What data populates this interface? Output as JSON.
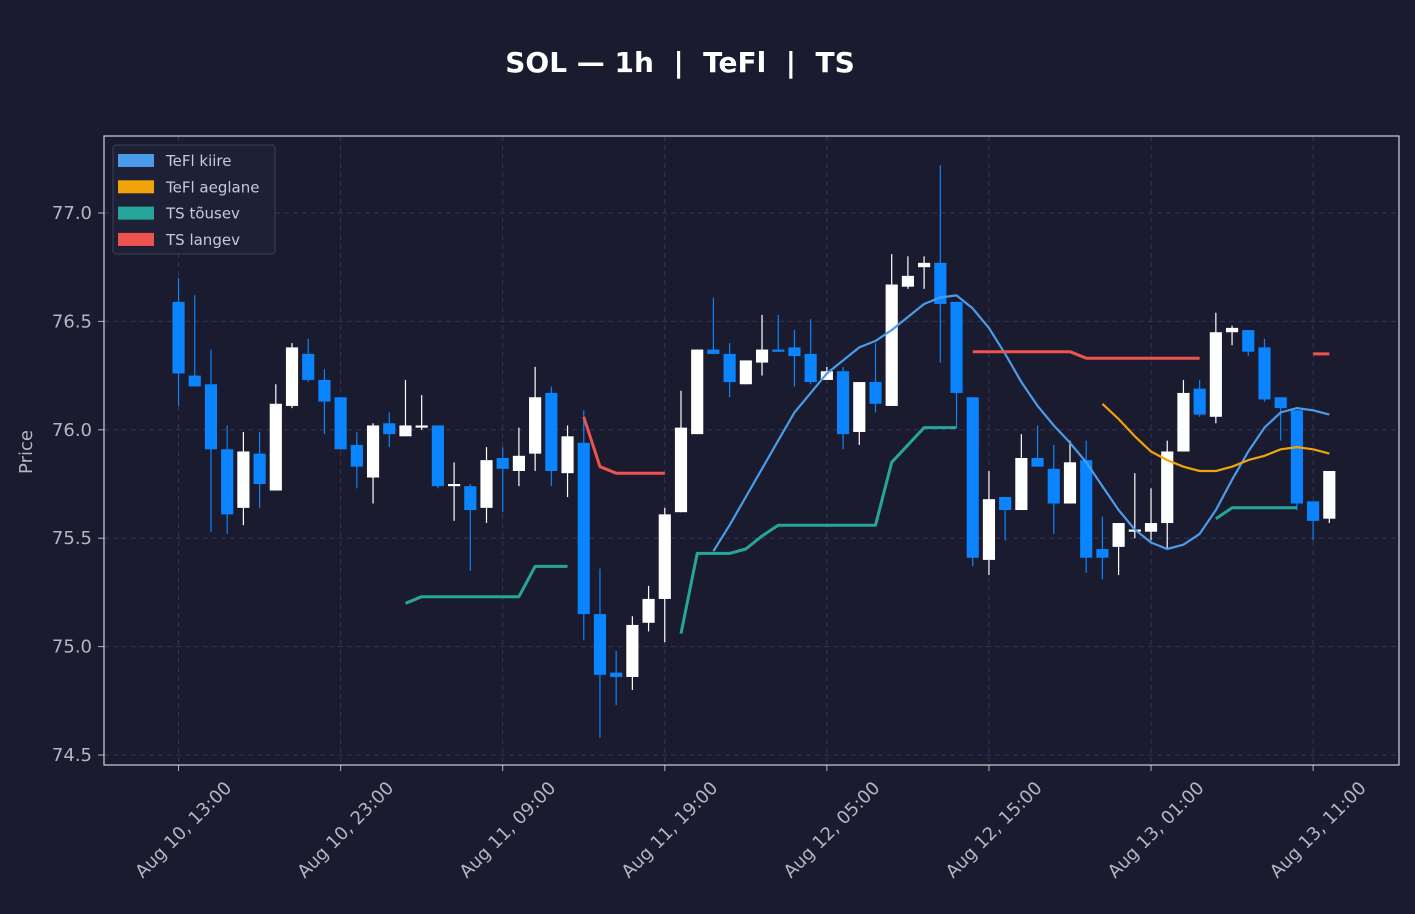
{
  "chart_data": {
    "type": "candlestick",
    "title": "SOL — 1h  |  TeFl  |  TS",
    "y_label": "Price",
    "categories": [
      "Aug 10, 13:00",
      null,
      null,
      null,
      null,
      null,
      null,
      null,
      null,
      null,
      "Aug 10, 23:00",
      null,
      null,
      null,
      null,
      null,
      null,
      null,
      null,
      null,
      "Aug 11, 09:00",
      null,
      null,
      null,
      null,
      null,
      null,
      null,
      null,
      null,
      "Aug 11, 19:00",
      null,
      null,
      null,
      null,
      null,
      null,
      null,
      null,
      null,
      "Aug 12, 05:00",
      null,
      null,
      null,
      null,
      null,
      null,
      null,
      null,
      null,
      "Aug 12, 15:00",
      null,
      null,
      null,
      null,
      null,
      null,
      null,
      null,
      null,
      "Aug 13, 01:00",
      null,
      null,
      null,
      null,
      null,
      null,
      null,
      null,
      null,
      "Aug 13, 11:00",
      null
    ],
    "open": [
      76.59,
      76.25,
      76.21,
      75.91,
      75.64,
      75.89,
      75.72,
      76.11,
      76.35,
      76.23,
      76.15,
      75.93,
      75.78,
      76.03,
      75.97,
      76.01,
      76.02,
      75.74,
      75.74,
      75.64,
      75.87,
      75.81,
      75.89,
      76.17,
      75.8,
      75.94,
      75.15,
      74.88,
      74.86,
      75.11,
      75.22,
      75.62,
      75.98,
      76.37,
      76.35,
      76.21,
      76.31,
      76.37,
      76.38,
      76.35,
      76.23,
      76.27,
      75.99,
      76.22,
      76.11,
      76.66,
      76.75,
      76.77,
      76.59,
      76.15,
      75.4,
      75.69,
      75.63,
      75.87,
      75.82,
      75.66,
      75.86,
      75.45,
      75.46,
      75.53,
      75.53,
      75.57,
      75.9,
      76.19,
      76.06,
      76.45,
      76.46,
      76.38,
      76.15,
      76.09,
      75.67,
      75.59
    ],
    "high": [
      76.7,
      76.62,
      76.37,
      76.02,
      75.99,
      75.99,
      76.21,
      76.4,
      76.42,
      76.28,
      76.15,
      75.99,
      76.03,
      76.08,
      76.23,
      76.16,
      76.02,
      75.85,
      75.75,
      75.92,
      75.92,
      76.01,
      76.29,
      76.2,
      76.02,
      76.09,
      75.36,
      74.98,
      75.14,
      75.28,
      75.64,
      76.18,
      76.37,
      76.61,
      76.4,
      76.32,
      76.53,
      76.53,
      76.46,
      76.51,
      76.29,
      76.29,
      76.22,
      76.4,
      76.81,
      76.8,
      76.8,
      77.22,
      76.59,
      76.15,
      75.81,
      75.69,
      75.98,
      76.02,
      75.93,
      75.95,
      75.95,
      75.6,
      75.57,
      75.8,
      75.73,
      75.95,
      76.23,
      76.23,
      76.54,
      76.48,
      76.46,
      76.42,
      76.15,
      76.09,
      75.67,
      75.81
    ],
    "low": [
      76.11,
      76.2,
      75.53,
      75.52,
      75.56,
      75.64,
      75.72,
      76.1,
      76.22,
      75.98,
      75.91,
      75.73,
      75.66,
      75.92,
      75.97,
      76.0,
      75.73,
      75.58,
      75.35,
      75.57,
      75.62,
      75.74,
      75.81,
      75.74,
      75.69,
      75.03,
      74.58,
      74.73,
      74.8,
      75.07,
      75.02,
      75.62,
      75.98,
      76.35,
      76.15,
      76.21,
      76.25,
      76.36,
      76.2,
      76.21,
      76.23,
      75.91,
      75.93,
      76.08,
      76.11,
      76.65,
      76.65,
      76.31,
      76.01,
      75.37,
      75.33,
      75.49,
      75.63,
      75.83,
      75.52,
      75.66,
      75.34,
      75.31,
      75.33,
      75.5,
      75.49,
      75.45,
      75.9,
      76.06,
      76.03,
      76.39,
      76.34,
      76.13,
      75.95,
      75.63,
      75.49,
      75.57
    ],
    "close": [
      76.26,
      76.2,
      75.91,
      75.61,
      75.9,
      75.75,
      76.12,
      76.38,
      76.23,
      76.13,
      75.91,
      75.83,
      76.02,
      75.98,
      76.02,
      76.02,
      75.74,
      75.75,
      75.63,
      75.86,
      75.82,
      75.88,
      76.15,
      75.81,
      75.97,
      75.15,
      74.87,
      74.86,
      75.1,
      75.22,
      75.61,
      76.01,
      76.37,
      76.35,
      76.22,
      76.32,
      76.37,
      76.36,
      76.34,
      76.22,
      76.27,
      75.98,
      76.22,
      76.12,
      76.67,
      76.71,
      76.77,
      76.58,
      76.17,
      75.41,
      75.68,
      75.63,
      75.87,
      75.83,
      75.66,
      75.85,
      75.41,
      75.41,
      75.57,
      75.54,
      75.57,
      75.9,
      76.17,
      76.07,
      76.45,
      76.47,
      76.36,
      76.14,
      76.1,
      75.66,
      75.58,
      75.81
    ],
    "up_color": "#ffffff",
    "down_color": "#0a84ff",
    "series": [
      {
        "name": "TeFl kiire",
        "color": "#4c9be8",
        "values": [
          null,
          null,
          null,
          null,
          null,
          null,
          null,
          null,
          null,
          null,
          null,
          null,
          null,
          null,
          null,
          null,
          null,
          null,
          null,
          null,
          null,
          null,
          null,
          null,
          null,
          null,
          null,
          null,
          null,
          null,
          null,
          null,
          null,
          75.44,
          75.56,
          75.69,
          75.82,
          75.95,
          76.08,
          76.17,
          76.26,
          76.32,
          76.38,
          76.41,
          76.46,
          76.52,
          76.58,
          76.61,
          76.62,
          76.56,
          76.47,
          76.35,
          76.22,
          76.11,
          76.02,
          75.94,
          75.85,
          75.74,
          75.63,
          75.54,
          75.48,
          75.45,
          75.47,
          75.52,
          75.63,
          75.77,
          75.9,
          76.01,
          76.08,
          76.1,
          76.09,
          76.07
        ]
      },
      {
        "name": "TeFl aeglane",
        "color": "#f0a30a",
        "values": [
          null,
          null,
          null,
          null,
          null,
          null,
          null,
          null,
          null,
          null,
          null,
          null,
          null,
          null,
          null,
          null,
          null,
          null,
          null,
          null,
          null,
          null,
          null,
          null,
          null,
          null,
          null,
          null,
          null,
          null,
          null,
          null,
          null,
          null,
          null,
          null,
          null,
          null,
          null,
          null,
          null,
          null,
          null,
          null,
          null,
          null,
          null,
          null,
          null,
          null,
          null,
          null,
          null,
          null,
          null,
          null,
          null,
          76.12,
          76.05,
          75.97,
          75.9,
          75.86,
          75.83,
          75.81,
          75.81,
          75.83,
          75.86,
          75.88,
          75.91,
          75.92,
          75.91,
          75.89
        ]
      },
      {
        "name": "TS tõusev",
        "color": "#26a69a",
        "values": [
          null,
          null,
          null,
          null,
          null,
          null,
          null,
          null,
          null,
          null,
          null,
          null,
          null,
          null,
          75.2,
          75.23,
          75.23,
          75.23,
          75.23,
          75.23,
          75.23,
          75.23,
          75.37,
          75.37,
          75.37,
          null,
          null,
          null,
          null,
          null,
          null,
          75.06,
          75.43,
          75.43,
          75.43,
          75.45,
          75.51,
          75.56,
          75.56,
          75.56,
          75.56,
          75.56,
          75.56,
          75.56,
          75.85,
          75.93,
          76.01,
          76.01,
          76.01,
          null,
          null,
          null,
          null,
          null,
          null,
          null,
          null,
          null,
          null,
          null,
          null,
          null,
          null,
          null,
          75.59,
          75.64,
          75.64,
          75.64,
          75.64,
          75.64,
          null,
          null
        ]
      },
      {
        "name": "TS langev",
        "color": "#ef5350",
        "values": [
          null,
          null,
          null,
          null,
          null,
          null,
          null,
          null,
          null,
          null,
          null,
          null,
          null,
          null,
          null,
          null,
          null,
          null,
          null,
          null,
          null,
          null,
          null,
          null,
          null,
          76.06,
          75.83,
          75.8,
          75.8,
          75.8,
          75.8,
          null,
          null,
          null,
          null,
          null,
          null,
          null,
          null,
          null,
          null,
          null,
          null,
          null,
          null,
          null,
          null,
          null,
          null,
          76.36,
          76.36,
          76.36,
          76.36,
          76.36,
          76.36,
          76.36,
          76.33,
          76.33,
          76.33,
          76.33,
          76.33,
          76.33,
          76.33,
          76.33,
          null,
          null,
          null,
          null,
          null,
          null,
          76.35,
          76.35
        ]
      }
    ],
    "xlim": [
      -4.6,
      75.3
    ],
    "ylim": [
      74.454,
      77.355
    ],
    "yticks": [
      74.5,
      {
        "value": 75,
        "label": "75.0"
      },
      75.5,
      {
        "value": 76,
        "label": "76.0"
      },
      76.5,
      {
        "value": 77,
        "label": "77.0"
      }
    ],
    "grid": true,
    "legend": "upper left"
  }
}
